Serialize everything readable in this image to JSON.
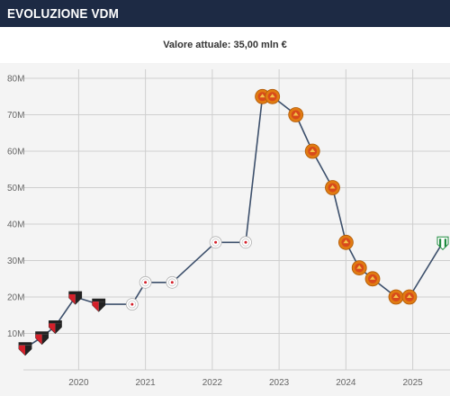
{
  "header": {
    "title": "EVOLUZIONE VDM"
  },
  "current_value": {
    "label": "Valore attuale: 35,00 mln €"
  },
  "colors": {
    "header_bg": "#1d2a44",
    "line": "#3c4f6b",
    "plot_bg": "#f4f4f4",
    "sao_paulo_red": "#d4202a",
    "manchester_united": "#e07b12",
    "ajax": "#e8e8e8",
    "betis": "#1e8a3e"
  },
  "chart_data": {
    "type": "line",
    "title": "",
    "xlabel": "",
    "ylabel": "",
    "ylim": [
      0,
      80
    ],
    "y_ticks": [
      10,
      20,
      30,
      40,
      50,
      60,
      70,
      80
    ],
    "y_tick_labels": [
      "10M",
      "20M",
      "30M",
      "40M",
      "50M",
      "60M",
      "70M",
      "80M"
    ],
    "x_range": [
      2019.2,
      2025.45
    ],
    "x_ticks": [
      2020,
      2021,
      2022,
      2023,
      2024,
      2025
    ],
    "x_tick_labels": [
      "2020",
      "2021",
      "2022",
      "2023",
      "2024",
      "2025"
    ],
    "grid": true,
    "series": [
      {
        "points": [
          {
            "x": 2019.2,
            "y": 6,
            "club": "sao-paulo"
          },
          {
            "x": 2019.45,
            "y": 9,
            "club": "sao-paulo"
          },
          {
            "x": 2019.65,
            "y": 12,
            "club": "sao-paulo"
          },
          {
            "x": 2019.95,
            "y": 20,
            "club": "sao-paulo"
          },
          {
            "x": 2020.3,
            "y": 18,
            "club": "sao-paulo"
          },
          {
            "x": 2020.8,
            "y": 18,
            "club": "ajax"
          },
          {
            "x": 2021.0,
            "y": 24,
            "club": "ajax"
          },
          {
            "x": 2021.4,
            "y": 24,
            "club": "ajax"
          },
          {
            "x": 2022.05,
            "y": 35,
            "club": "ajax"
          },
          {
            "x": 2022.5,
            "y": 35,
            "club": "ajax"
          },
          {
            "x": 2022.75,
            "y": 75,
            "club": "manchester-united"
          },
          {
            "x": 2022.9,
            "y": 75,
            "club": "manchester-united"
          },
          {
            "x": 2023.25,
            "y": 70,
            "club": "manchester-united"
          },
          {
            "x": 2023.5,
            "y": 60,
            "club": "manchester-united"
          },
          {
            "x": 2023.8,
            "y": 50,
            "club": "manchester-united"
          },
          {
            "x": 2024.0,
            "y": 35,
            "club": "manchester-united"
          },
          {
            "x": 2024.2,
            "y": 28,
            "club": "manchester-united"
          },
          {
            "x": 2024.4,
            "y": 25,
            "club": "manchester-united"
          },
          {
            "x": 2024.75,
            "y": 20,
            "club": "manchester-united"
          },
          {
            "x": 2024.95,
            "y": 20,
            "club": "manchester-united"
          },
          {
            "x": 2025.45,
            "y": 35,
            "club": "betis"
          }
        ]
      }
    ]
  }
}
